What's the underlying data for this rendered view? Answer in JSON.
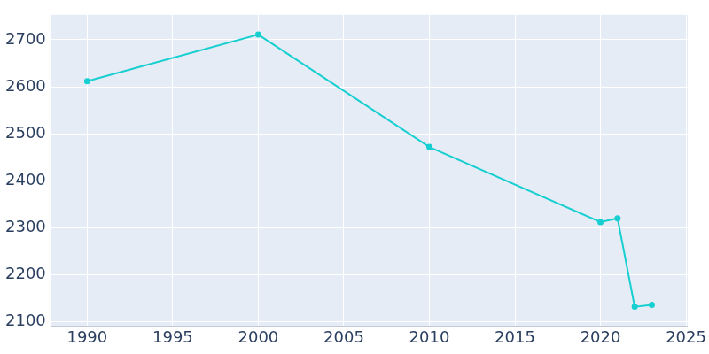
{
  "chart_data": {
    "type": "line",
    "x": [
      1990,
      2000,
      2010,
      2020,
      2021,
      2022,
      2023
    ],
    "values": [
      2612,
      2711,
      2472,
      2312,
      2320,
      2132,
      2136
    ],
    "color": "#17cfd0",
    "marker": "circle",
    "xlim": [
      1987.9,
      2025.1
    ],
    "xticks": [
      1990,
      1995,
      2000,
      2005,
      2010,
      2015,
      2020,
      2025
    ],
    "ylim": [
      2091,
      2753
    ],
    "yticks": [
      2100,
      2200,
      2300,
      2400,
      2500,
      2600,
      2700
    ],
    "grid": true
  }
}
